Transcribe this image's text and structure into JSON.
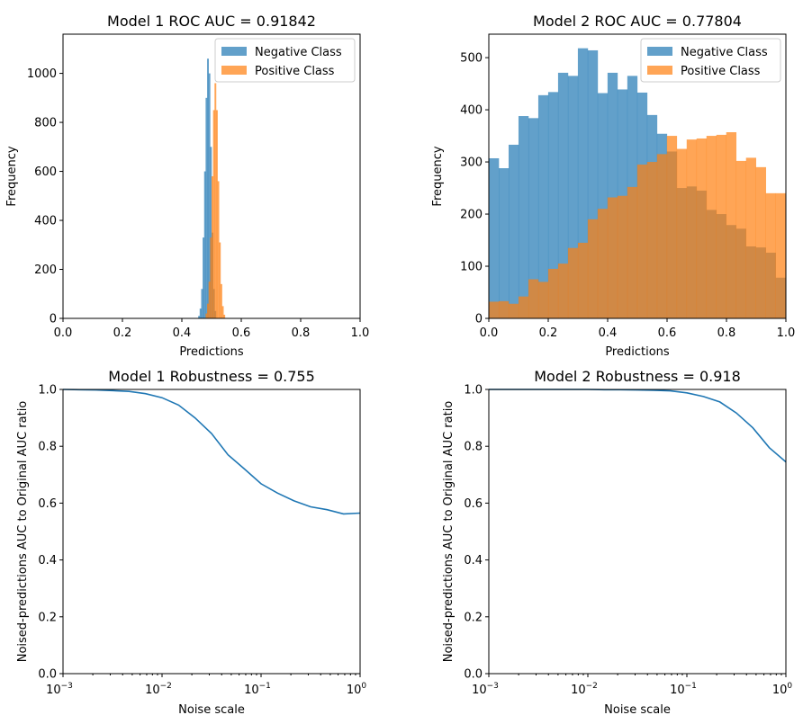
{
  "colors": {
    "negative": "#1f77b4",
    "positive": "#ff7f0e",
    "line": "#1f77b4"
  },
  "chart_data": [
    {
      "type": "bar",
      "title": "Model 1 ROC AUC = 0.91842",
      "xlabel": "Predictions",
      "ylabel": "Frequency",
      "xlim": [
        0.0,
        1.0
      ],
      "ylim": [
        0,
        1160
      ],
      "xticks": [
        "0.0",
        "0.2",
        "0.4",
        "0.6",
        "0.8",
        "1.0"
      ],
      "yticks": [
        "0",
        "200",
        "400",
        "600",
        "800",
        "1000"
      ],
      "legend": {
        "position": "upper right",
        "entries": [
          "Negative Class",
          "Positive Class"
        ]
      },
      "series": [
        {
          "name": "Negative Class",
          "color": "#1f77b4",
          "bins": [
            {
              "x0": 0.455,
              "x1": 0.46,
              "y": 10
            },
            {
              "x0": 0.46,
              "x1": 0.465,
              "y": 40
            },
            {
              "x0": 0.465,
              "x1": 0.47,
              "y": 120
            },
            {
              "x0": 0.47,
              "x1": 0.475,
              "y": 330
            },
            {
              "x0": 0.475,
              "x1": 0.48,
              "y": 600
            },
            {
              "x0": 0.48,
              "x1": 0.485,
              "y": 900
            },
            {
              "x0": 0.485,
              "x1": 0.49,
              "y": 1060
            },
            {
              "x0": 0.49,
              "x1": 0.495,
              "y": 1000
            },
            {
              "x0": 0.495,
              "x1": 0.5,
              "y": 700
            },
            {
              "x0": 0.5,
              "x1": 0.505,
              "y": 350
            },
            {
              "x0": 0.505,
              "x1": 0.51,
              "y": 120
            },
            {
              "x0": 0.51,
              "x1": 0.515,
              "y": 30
            }
          ]
        },
        {
          "name": "Positive Class",
          "color": "#ff7f0e",
          "bins": [
            {
              "x0": 0.48,
              "x1": 0.485,
              "y": 20
            },
            {
              "x0": 0.485,
              "x1": 0.49,
              "y": 60
            },
            {
              "x0": 0.49,
              "x1": 0.495,
              "y": 150
            },
            {
              "x0": 0.495,
              "x1": 0.5,
              "y": 330
            },
            {
              "x0": 0.5,
              "x1": 0.505,
              "y": 580
            },
            {
              "x0": 0.505,
              "x1": 0.51,
              "y": 850
            },
            {
              "x0": 0.51,
              "x1": 0.515,
              "y": 960
            },
            {
              "x0": 0.515,
              "x1": 0.52,
              "y": 850
            },
            {
              "x0": 0.52,
              "x1": 0.525,
              "y": 560
            },
            {
              "x0": 0.525,
              "x1": 0.53,
              "y": 310
            },
            {
              "x0": 0.53,
              "x1": 0.535,
              "y": 140
            },
            {
              "x0": 0.535,
              "x1": 0.54,
              "y": 50
            },
            {
              "x0": 0.54,
              "x1": 0.545,
              "y": 15
            }
          ]
        }
      ]
    },
    {
      "type": "bar",
      "title": "Model 2 ROC AUC = 0.77804",
      "xlabel": "Predictions",
      "ylabel": "Frequency",
      "xlim": [
        0.0,
        1.0
      ],
      "ylim": [
        0,
        545
      ],
      "xticks": [
        "0.0",
        "0.2",
        "0.4",
        "0.6",
        "0.8",
        "1.0"
      ],
      "yticks": [
        "0",
        "100",
        "200",
        "300",
        "400",
        "500"
      ],
      "legend": {
        "position": "upper right",
        "entries": [
          "Negative Class",
          "Positive Class"
        ]
      },
      "series": [
        {
          "name": "Negative Class",
          "color": "#1f77b4",
          "bin_start": 0.0,
          "bin_width": 0.0333,
          "values": [
            307,
            288,
            333,
            388,
            384,
            428,
            434,
            471,
            465,
            518,
            514,
            432,
            471,
            439,
            465,
            433,
            390,
            354,
            320,
            250,
            253,
            245,
            208,
            200,
            179,
            172,
            138,
            136,
            126,
            78
          ]
        },
        {
          "name": "Positive Class",
          "color": "#ff7f0e",
          "bin_start": 0.0,
          "bin_width": 0.0333,
          "values": [
            32,
            33,
            28,
            42,
            75,
            70,
            95,
            105,
            135,
            145,
            190,
            210,
            232,
            235,
            252,
            295,
            300,
            315,
            350,
            325,
            343,
            345,
            350,
            352,
            357,
            302,
            308,
            290,
            240,
            240
          ]
        }
      ]
    },
    {
      "type": "line",
      "title": "Model 1 Robustness = 0.755",
      "xlabel": "Noise scale",
      "ylabel": "Noised-predictions AUC to Original AUC ratio",
      "xscale": "log",
      "xlim": [
        0.001,
        1.0
      ],
      "ylim": [
        0.0,
        1.0
      ],
      "xticks": [
        {
          "base": "10",
          "exp": "−3"
        },
        {
          "base": "10",
          "exp": "−2"
        },
        {
          "base": "10",
          "exp": "−1"
        },
        {
          "base": "10",
          "exp": "0"
        }
      ],
      "yticks": [
        "0.0",
        "0.2",
        "0.4",
        "0.6",
        "0.8",
        "1.0"
      ],
      "series": [
        {
          "color": "#1f77b4",
          "x": [
            0.001,
            0.00147,
            0.00215,
            0.00316,
            0.00464,
            0.00681,
            0.01,
            0.0147,
            0.0215,
            0.0316,
            0.0464,
            0.0681,
            0.1,
            0.147,
            0.215,
            0.316,
            0.464,
            0.681,
            1.0
          ],
          "y": [
            1.0,
            0.999,
            0.998,
            0.996,
            0.993,
            0.985,
            0.971,
            0.945,
            0.9,
            0.845,
            0.77,
            0.72,
            0.668,
            0.635,
            0.608,
            0.587,
            0.577,
            0.562,
            0.565
          ]
        }
      ]
    },
    {
      "type": "line",
      "title": "Model 2 Robustness = 0.918",
      "xlabel": "Noise scale",
      "ylabel": "Noised-predictions AUC to Original AUC ratio",
      "xscale": "log",
      "xlim": [
        0.001,
        1.0
      ],
      "ylim": [
        0.0,
        1.0
      ],
      "xticks": [
        {
          "base": "10",
          "exp": "−3"
        },
        {
          "base": "10",
          "exp": "−2"
        },
        {
          "base": "10",
          "exp": "−1"
        },
        {
          "base": "10",
          "exp": "0"
        }
      ],
      "yticks": [
        "0.0",
        "0.2",
        "0.4",
        "0.6",
        "0.8",
        "1.0"
      ],
      "series": [
        {
          "color": "#1f77b4",
          "x": [
            0.001,
            0.00147,
            0.00215,
            0.00316,
            0.00464,
            0.00681,
            0.01,
            0.0147,
            0.0215,
            0.0316,
            0.0464,
            0.0681,
            0.1,
            0.147,
            0.215,
            0.316,
            0.464,
            0.681,
            1.0
          ],
          "y": [
            1.0,
            1.0,
            1.0,
            1.0,
            1.0,
            1.0,
            1.0,
            0.999,
            0.999,
            0.998,
            0.997,
            0.995,
            0.988,
            0.975,
            0.956,
            0.917,
            0.865,
            0.795,
            0.745
          ]
        }
      ]
    }
  ]
}
